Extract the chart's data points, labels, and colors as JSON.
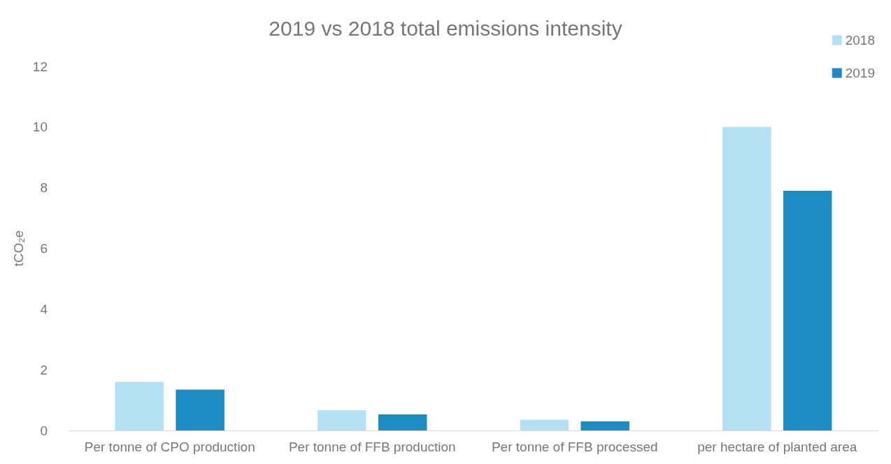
{
  "chart_data": {
    "type": "bar",
    "title": "2019 vs 2018 total emissions intensity",
    "ylabel": "tCO₂e",
    "categories": [
      "Per tonne of CPO production",
      "Per tonne of FFB production",
      "Per tonne of FFB processed",
      "per hectare of planted area"
    ],
    "series": [
      {
        "name": "2018",
        "color": "#b4e0f4",
        "values": [
          1.6,
          0.67,
          0.35,
          10.0
        ]
      },
      {
        "name": "2019",
        "color": "#1b8dc2",
        "values": [
          1.35,
          0.53,
          0.3,
          7.9
        ]
      }
    ],
    "ylim": [
      0,
      12
    ],
    "yticks": [
      0,
      2,
      4,
      6,
      8,
      10,
      12
    ],
    "grid": false,
    "legend": "top right"
  }
}
